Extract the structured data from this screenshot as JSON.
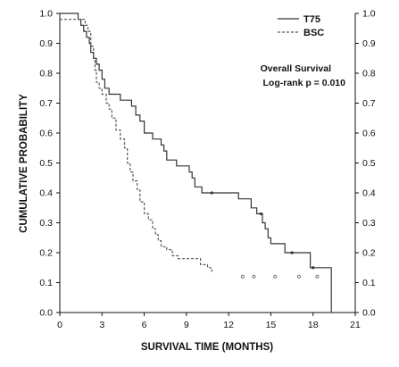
{
  "chart_data": {
    "type": "line",
    "subtype": "kaplan-meier step curve",
    "xlabel": "SURVIVAL TIME (MONTHS)",
    "ylabel": "CUMULATIVE PROBABILITY",
    "xlim": [
      0,
      21
    ],
    "ylim": [
      0,
      1.0
    ],
    "x_ticks": [
      0,
      3,
      6,
      9,
      12,
      15,
      18,
      21
    ],
    "y_ticks": [
      0.0,
      0.1,
      0.2,
      0.3,
      0.4,
      0.5,
      0.6,
      0.7,
      0.8,
      0.9,
      1.0
    ],
    "y_ticks_mirrored_right": true,
    "grid": false,
    "legend": {
      "position": "top-right",
      "entries": [
        {
          "label": "T75",
          "style": "solid"
        },
        {
          "label": "BSC",
          "style": "dashed"
        }
      ]
    },
    "annotations": [
      "Overall Survival",
      "Log-rank p = 0.010"
    ],
    "series": [
      {
        "name": "T75",
        "style": "solid",
        "color": "#333333",
        "steps": [
          [
            0,
            1.0
          ],
          [
            1.3,
            0.98
          ],
          [
            1.5,
            0.96
          ],
          [
            1.7,
            0.94
          ],
          [
            1.9,
            0.92
          ],
          [
            2.1,
            0.9
          ],
          [
            2.2,
            0.87
          ],
          [
            2.4,
            0.85
          ],
          [
            2.6,
            0.83
          ],
          [
            2.8,
            0.81
          ],
          [
            3.0,
            0.78
          ],
          [
            3.2,
            0.75
          ],
          [
            3.5,
            0.73
          ],
          [
            4.3,
            0.71
          ],
          [
            5.1,
            0.69
          ],
          [
            5.4,
            0.66
          ],
          [
            5.7,
            0.64
          ],
          [
            6.0,
            0.6
          ],
          [
            6.6,
            0.58
          ],
          [
            7.2,
            0.56
          ],
          [
            7.4,
            0.54
          ],
          [
            7.6,
            0.51
          ],
          [
            8.3,
            0.49
          ],
          [
            9.2,
            0.47
          ],
          [
            9.4,
            0.45
          ],
          [
            9.6,
            0.42
          ],
          [
            10.1,
            0.4
          ],
          [
            12.7,
            0.38
          ],
          [
            13.6,
            0.35
          ],
          [
            14.0,
            0.33
          ],
          [
            14.4,
            0.3
          ],
          [
            14.6,
            0.28
          ],
          [
            14.8,
            0.25
          ],
          [
            15.0,
            0.23
          ],
          [
            16.0,
            0.2
          ],
          [
            17.8,
            0.15
          ],
          [
            19.3,
            0.0
          ]
        ],
        "censor_marks": [
          [
            10.8,
            0.4
          ],
          [
            14.3,
            0.33
          ],
          [
            16.5,
            0.2
          ],
          [
            18.0,
            0.15
          ]
        ]
      },
      {
        "name": "BSC",
        "style": "dashed",
        "color": "#555555",
        "steps": [
          [
            0,
            0.98
          ],
          [
            1.8,
            0.96
          ],
          [
            2.0,
            0.94
          ],
          [
            2.2,
            0.89
          ],
          [
            2.4,
            0.85
          ],
          [
            2.5,
            0.81
          ],
          [
            2.6,
            0.77
          ],
          [
            2.8,
            0.75
          ],
          [
            3.0,
            0.73
          ],
          [
            3.3,
            0.7
          ],
          [
            3.5,
            0.68
          ],
          [
            3.7,
            0.65
          ],
          [
            4.0,
            0.61
          ],
          [
            4.3,
            0.58
          ],
          [
            4.6,
            0.55
          ],
          [
            4.8,
            0.5
          ],
          [
            5.0,
            0.47
          ],
          [
            5.2,
            0.44
          ],
          [
            5.5,
            0.41
          ],
          [
            5.7,
            0.37
          ],
          [
            6.0,
            0.33
          ],
          [
            6.3,
            0.31
          ],
          [
            6.6,
            0.28
          ],
          [
            6.8,
            0.26
          ],
          [
            7.0,
            0.24
          ],
          [
            7.2,
            0.22
          ],
          [
            7.6,
            0.21
          ],
          [
            8.0,
            0.19
          ],
          [
            8.4,
            0.18
          ],
          [
            10.0,
            0.16
          ],
          [
            10.5,
            0.15
          ],
          [
            10.8,
            0.13
          ]
        ],
        "censor_marks": [
          [
            13.0,
            0.12
          ],
          [
            13.8,
            0.12
          ],
          [
            15.3,
            0.12
          ],
          [
            17.0,
            0.12
          ],
          [
            18.3,
            0.12
          ]
        ]
      }
    ]
  }
}
